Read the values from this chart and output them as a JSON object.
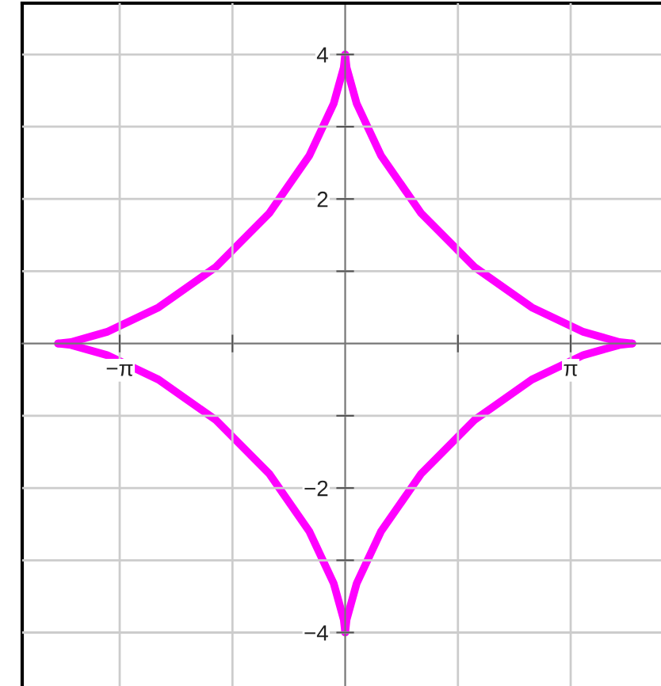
{
  "chart_data": {
    "type": "line",
    "xlim": [
      -4.5,
      4.4
    ],
    "ylim": [
      -4.74,
      4.71
    ],
    "xticks": [
      {
        "value": -3.14159,
        "label": "−π"
      },
      {
        "value": -1.5708,
        "label": null
      },
      {
        "value": 1.5708,
        "label": null
      },
      {
        "value": 3.14159,
        "label": "π"
      }
    ],
    "yticks": [
      {
        "value": -4,
        "label": "−4"
      },
      {
        "value": -3,
        "label": null
      },
      {
        "value": -2,
        "label": "−2"
      },
      {
        "value": -1,
        "label": null
      },
      {
        "value": 1,
        "label": null
      },
      {
        "value": 2,
        "label": "2"
      },
      {
        "value": 3,
        "label": null
      },
      {
        "value": 4,
        "label": "4"
      }
    ],
    "grid": true,
    "marker": "none",
    "line_style": "solid",
    "series": [
      {
        "color": "#ff00ff",
        "x": [
          0,
          0.02,
          0.16,
          0.5,
          1.06,
          1.8,
          2.6,
          3.32,
          3.82,
          4
        ],
        "values": [
          4,
          3.82,
          3.32,
          2.6,
          1.8,
          1.06,
          0.5,
          0.16,
          0.02,
          0
        ]
      },
      {
        "color": "#ff00ff",
        "x": [
          -4,
          -3.82,
          -3.32,
          -2.6,
          -1.8,
          -1.06,
          -0.5,
          -0.16,
          -0.02,
          0
        ],
        "values": [
          0,
          0.02,
          0.16,
          0.5,
          1.06,
          1.8,
          2.6,
          3.32,
          3.82,
          4
        ]
      },
      {
        "color": "#ff00ff",
        "x": [
          -4,
          -3.82,
          -3.32,
          -2.6,
          -1.8,
          -1.06,
          -0.5,
          -0.16,
          -0.02,
          0
        ],
        "values": [
          0,
          -0.02,
          -0.16,
          -0.5,
          -1.06,
          -1.8,
          -2.6,
          -3.32,
          -3.82,
          -4
        ]
      },
      {
        "color": "#ff00ff",
        "x": [
          0,
          0.02,
          0.16,
          0.5,
          1.06,
          1.8,
          2.6,
          3.32,
          3.82,
          4
        ],
        "values": [
          -4,
          -3.82,
          -3.32,
          -2.6,
          -1.8,
          -1.06,
          -0.5,
          -0.16,
          -0.02,
          0
        ]
      }
    ]
  }
}
